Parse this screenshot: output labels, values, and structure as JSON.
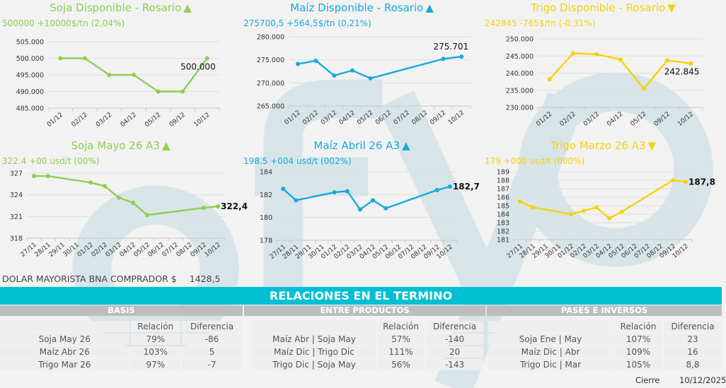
{
  "colors": {
    "soja": "#8dcf4f",
    "maiz": "#17a9dd",
    "trigo": "#f5d20a",
    "banner": "#00bfd3",
    "section": "#bdbdbd",
    "watermark": "#d3e3e8"
  },
  "watermark": "fyo",
  "chart_data": [
    {
      "type": "line",
      "title": "Soja Disponible - Rosario",
      "arrow": "▲",
      "subtitle": "500000 +10000$/tn (2,04%)",
      "color": "soja",
      "categories": [
        "01/12",
        "02/12",
        "03/12",
        "04/12",
        "05/12",
        "09/12",
        "10/12"
      ],
      "values": [
        500000,
        500000,
        495000,
        495000,
        490000,
        490000,
        500000
      ],
      "ylim": [
        485000,
        505000
      ],
      "yticks": [
        485000,
        490000,
        495000,
        500000,
        505000
      ],
      "ytick_labels": [
        "485.000",
        "490.000",
        "495.000",
        "500.000",
        "505.000"
      ],
      "data_label": "500.000",
      "grid": true
    },
    {
      "type": "line",
      "title": "Maíz Disponible - Rosario",
      "arrow": "▲",
      "subtitle": "275700,5 +564,5$/tn (0,21%)",
      "color": "maiz",
      "categories": [
        "01/12",
        "02/12",
        "03/12",
        "04/12",
        "05/12",
        "06/12",
        "07/12",
        "08/12",
        "09/12",
        "10/12"
      ],
      "values": [
        274100,
        274800,
        271600,
        272700,
        271000,
        null,
        null,
        null,
        275200,
        275701
      ],
      "ylim": [
        265000,
        280000
      ],
      "yticks": [
        265000,
        270000,
        275000,
        280000
      ],
      "ytick_labels": [
        "265.000",
        "270.000",
        "275.000",
        "280.000"
      ],
      "data_label": "275.701",
      "grid": true
    },
    {
      "type": "line",
      "title": "Trigo Disponible - Rosario",
      "arrow": "▼",
      "subtitle": "242845 -765$/tn (-0,31%)",
      "color": "trigo",
      "categories": [
        "01/12",
        "02/12",
        "03/12",
        "04/12",
        "05/12",
        "09/12",
        "10/12"
      ],
      "values": [
        238200,
        245800,
        245500,
        244000,
        235500,
        243700,
        242845
      ],
      "ylim": [
        230000,
        250000
      ],
      "yticks": [
        230000,
        235000,
        240000,
        245000,
        250000
      ],
      "ytick_labels": [
        "230.000",
        "235.000",
        "240.000",
        "245.000",
        "250.000"
      ],
      "data_label": "242.845",
      "grid": true
    },
    {
      "type": "line",
      "title": "Soja Mayo 26 A3",
      "arrow": "▲",
      "subtitle": "322.4 +00 usd/t (00%)",
      "color": "soja",
      "categories": [
        "27/11",
        "28/11",
        "29/11",
        "30/11",
        "01/12",
        "02/12",
        "03/12",
        "04/12",
        "05/12",
        "06/12",
        "07/12",
        "08/12",
        "09/12",
        "10/12"
      ],
      "values": [
        326.6,
        326.6,
        null,
        null,
        325.7,
        325.2,
        323.6,
        322.9,
        321.2,
        null,
        null,
        null,
        322.2,
        322.4
      ],
      "ylim": [
        318,
        327
      ],
      "yticks": [
        318,
        321,
        324,
        327
      ],
      "ytick_labels": [
        "318",
        "321",
        "324",
        "327"
      ],
      "data_label": "322,4",
      "grid": true
    },
    {
      "type": "line",
      "title": "Maíz Abril 26 A3",
      "arrow": "▲",
      "subtitle": "198.5 +004 usd/t (002%)",
      "color": "maiz",
      "categories": [
        "27/11",
        "28/11",
        "29/11",
        "30/11",
        "01/12",
        "02/12",
        "03/12",
        "04/12",
        "05/12",
        "06/12",
        "07/12",
        "08/12",
        "09/12",
        "10/12"
      ],
      "values": [
        182.5,
        181.5,
        null,
        null,
        182.2,
        182.3,
        180.7,
        181.5,
        180.8,
        null,
        null,
        null,
        182.4,
        182.7
      ],
      "ylim": [
        178,
        184
      ],
      "yticks": [
        178,
        180,
        182,
        184
      ],
      "ytick_labels": [
        "178",
        "180",
        "182",
        "184"
      ],
      "data_label": "182,7",
      "grid": true
    },
    {
      "type": "line",
      "title": "Trigo Marzo 26 A3",
      "arrow": "▼",
      "subtitle": "179 +000 usd/t (000%)",
      "color": "trigo",
      "categories": [
        "27/11",
        "28/11",
        "29/11",
        "30/11",
        "01/12",
        "02/12",
        "03/12",
        "04/12",
        "05/12",
        "06/12",
        "07/12",
        "08/12",
        "09/12",
        "10/12"
      ],
      "values": [
        185.5,
        184.8,
        null,
        null,
        184.0,
        184.4,
        184.8,
        183.5,
        184.3,
        null,
        null,
        null,
        188.0,
        187.8
      ],
      "ylim": [
        181,
        189
      ],
      "yticks": [
        181,
        182,
        183,
        184,
        185,
        186,
        187,
        188,
        189
      ],
      "ytick_labels": [
        "181",
        "182",
        "183",
        "184",
        "185",
        "186",
        "187",
        "188",
        "189"
      ],
      "data_label": "187,8",
      "grid": true
    }
  ],
  "dolar": {
    "label": "DOLAR MAYORISTA BNA COMPRADOR $",
    "value": "1428,5"
  },
  "relaciones": {
    "title": "RELACIONES EN EL TERMINO",
    "sections": [
      {
        "title": "BASIS",
        "headers": [
          "",
          "Relación",
          "Diferencia"
        ],
        "rows": [
          [
            "Soja May 26",
            "79%",
            "-86"
          ],
          [
            "Maíz Abr 26",
            "103%",
            "5"
          ],
          [
            "Trigo Mar 26",
            "97%",
            "-7"
          ]
        ]
      },
      {
        "title": "ENTRE PRODUCTOS",
        "headers": [
          "",
          "Relación",
          "Diferencia"
        ],
        "rows": [
          [
            "Maíz Abr | Soja May",
            "57%",
            "-140"
          ],
          [
            "Maíz Dic | Trigo Dic",
            "111%",
            "20"
          ],
          [
            "Trigo Dic | Soja May",
            "56%",
            "-143"
          ]
        ]
      },
      {
        "title": "PASES E INVERSOS",
        "headers": [
          "",
          "Relación",
          "Diferencia"
        ],
        "rows": [
          [
            "Soja Ene | May",
            "107%",
            "23"
          ],
          [
            "Maíz Dic | Abr",
            "109%",
            "16"
          ],
          [
            "Trigo Dic | Mar",
            "105%",
            "8,8"
          ]
        ]
      }
    ]
  },
  "cierre": {
    "label": "Cierre",
    "date": "10/12/2025"
  }
}
